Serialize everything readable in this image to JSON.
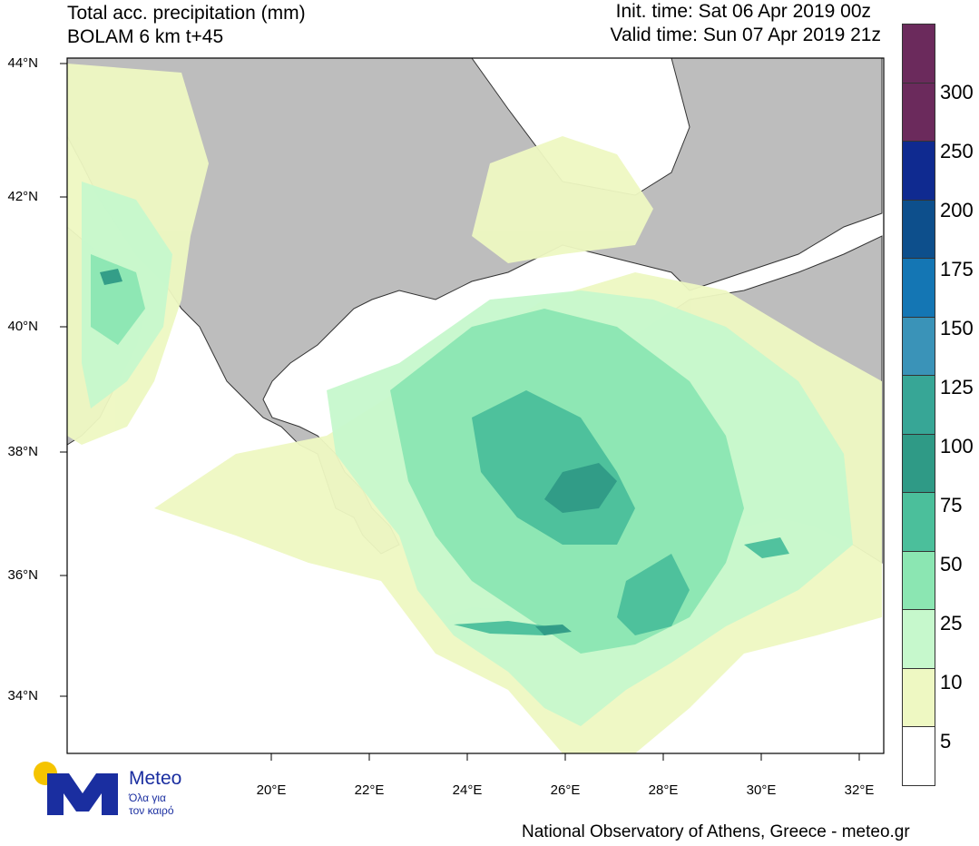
{
  "header": {
    "title_line1": "Total acc. precipitation (mm)",
    "title_line2": "BOLAM 6 km t+45",
    "init_time": "Init. time: Sat 06 Apr 2019 00z",
    "valid_time": "Valid time: Sun 07 Apr 2019 21z"
  },
  "map": {
    "lat_labels": [
      "44°N",
      "42°N",
      "40°N",
      "38°N",
      "36°N",
      "34°N"
    ],
    "lon_labels": [
      "20°E",
      "22°E",
      "24°E",
      "26°E",
      "28°E",
      "30°E",
      "32°E"
    ],
    "land_color": "#bdbdbd",
    "sea_color": "#ffffff"
  },
  "legend": {
    "levels": [
      "5",
      "10",
      "25",
      "50",
      "75",
      "100",
      "125",
      "150",
      "175",
      "200",
      "250",
      "300"
    ],
    "colors_top_to_bottom": [
      "#6b2a5c",
      "#6b2a5c",
      "#0f2a90",
      "#0d4f8c",
      "#1476b4",
      "#3a93b8",
      "#37a696",
      "#2f9a86",
      "#4bbf9b",
      "#8be6b2",
      "#c6f8cc",
      "#eef8c2",
      "#ffffff"
    ]
  },
  "footer": {
    "text": "National Observatory of Athens, Greece - meteo.gr"
  },
  "logo": {
    "name": "Meteo",
    "tagline_line1": "Όλα για",
    "tagline_line2": "τον καιρό"
  }
}
